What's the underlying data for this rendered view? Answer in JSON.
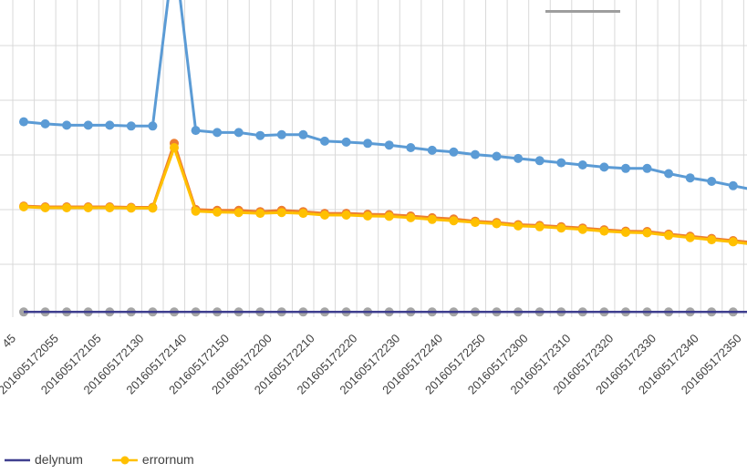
{
  "chart_data": {
    "type": "line",
    "title": "",
    "xlabel": "",
    "ylabel": "",
    "grid": true,
    "legend_position": "bottom-left",
    "x_tick_labels": [
      "45",
      "201605172055",
      "201605172105",
      "201605172130",
      "201605172140",
      "201605172150",
      "201605172200",
      "201605172210",
      "201605172220",
      "201605172230",
      "201605172240",
      "201605172250",
      "201605172300",
      "201605172310",
      "201605172320",
      "201605172330",
      "201605172340",
      "201605172350"
    ],
    "ylim": [
      0,
      7
    ],
    "series": [
      {
        "color": "#5b9bd5",
        "values": [
          4.5,
          4.45,
          4.42,
          4.42,
          4.42,
          4.4,
          4.4,
          8.5,
          4.3,
          4.25,
          4.25,
          4.18,
          4.2,
          4.2,
          4.05,
          4.03,
          4.0,
          3.96,
          3.9,
          3.84,
          3.8,
          3.74,
          3.7,
          3.65,
          3.6,
          3.55,
          3.5,
          3.45,
          3.42,
          3.42,
          3.3,
          3.2,
          3.12,
          3.02,
          2.92,
          2.8
        ]
      },
      {
        "color": "#a5a5a5",
        "values": [
          0.1,
          0.1,
          0.1,
          0.1,
          0.1,
          0.1,
          0.1,
          0.1,
          0.1,
          0.1,
          0.1,
          0.1,
          0.1,
          0.1,
          0.1,
          0.1,
          0.1,
          0.1,
          0.1,
          0.1,
          0.1,
          0.1,
          0.1,
          0.1,
          0.1,
          0.1,
          0.1,
          0.1,
          0.1,
          0.1,
          0.1,
          0.1,
          0.1,
          0.1,
          0.1,
          0.1
        ]
      },
      {
        "name": "delynum",
        "color": "#3f3f8f",
        "values": [
          0.1,
          0.1,
          0.1,
          0.1,
          0.1,
          0.1,
          0.1,
          0.1,
          0.1,
          0.1,
          0.1,
          0.1,
          0.1,
          0.1,
          0.1,
          0.1,
          0.1,
          0.1,
          0.1,
          0.1,
          0.1,
          0.1,
          0.1,
          0.1,
          0.1,
          0.1,
          0.1,
          0.1,
          0.1,
          0.1,
          0.1,
          0.1,
          0.1,
          0.1,
          0.1,
          0.1
        ]
      },
      {
        "color": "#ed7d31",
        "values": [
          2.55,
          2.53,
          2.53,
          2.53,
          2.53,
          2.52,
          2.52,
          4.0,
          2.47,
          2.45,
          2.45,
          2.42,
          2.45,
          2.42,
          2.38,
          2.38,
          2.36,
          2.35,
          2.32,
          2.28,
          2.25,
          2.2,
          2.17,
          2.12,
          2.1,
          2.07,
          2.04,
          2.0,
          1.97,
          1.96,
          1.9,
          1.85,
          1.8,
          1.75,
          1.7,
          1.6
        ]
      },
      {
        "name": "errornum",
        "color": "#ffc000",
        "values": [
          2.53,
          2.51,
          2.51,
          2.51,
          2.51,
          2.5,
          2.5,
          3.9,
          2.43,
          2.41,
          2.4,
          2.38,
          2.4,
          2.38,
          2.34,
          2.34,
          2.32,
          2.31,
          2.28,
          2.24,
          2.21,
          2.17,
          2.14,
          2.09,
          2.07,
          2.04,
          2.01,
          1.97,
          1.94,
          1.93,
          1.87,
          1.82,
          1.77,
          1.72,
          1.66,
          1.57
        ]
      }
    ]
  }
}
